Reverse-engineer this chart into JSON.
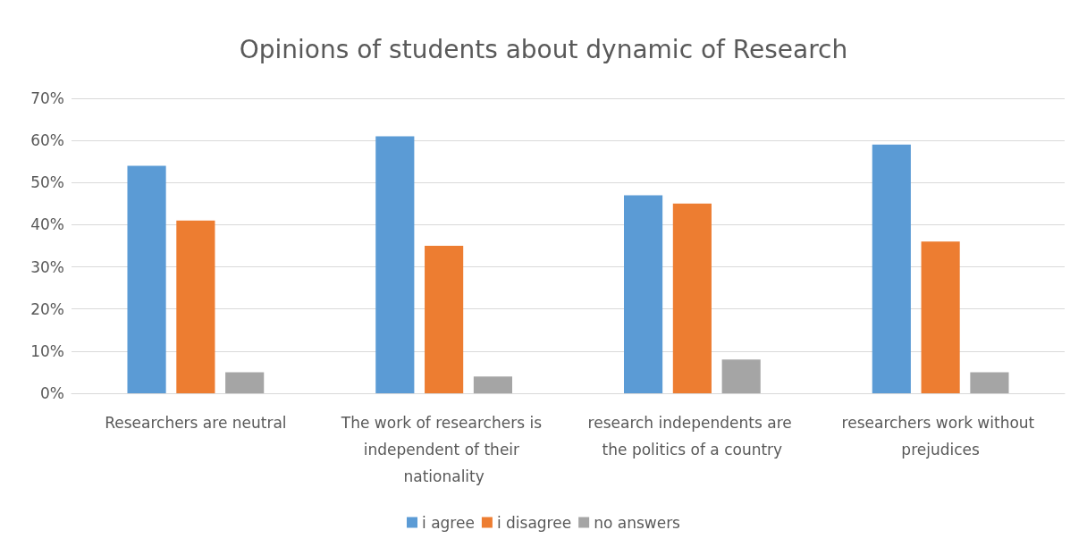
{
  "chart_data": {
    "type": "bar",
    "title": "Opinions of students about dynamic of Research",
    "categories": [
      "Researchers are neutral",
      "The work of researchers is independent of their nationality",
      "research independents are the politics of a country",
      "researchers work without prejudices"
    ],
    "series": [
      {
        "name": "i agree",
        "color": "#5b9bd5",
        "values": [
          54,
          61,
          47,
          59
        ]
      },
      {
        "name": "i disagree",
        "color": "#ed7d31",
        "values": [
          41,
          35,
          45,
          36
        ]
      },
      {
        "name": "no answers",
        "color": "#a5a5a5",
        "values": [
          5,
          4,
          8,
          5
        ]
      }
    ],
    "ylim": [
      0,
      70
    ],
    "yticks": [
      {
        "value": 0,
        "label": "0%"
      },
      {
        "value": 10,
        "label": "10%"
      },
      {
        "value": 20,
        "label": "20%"
      },
      {
        "value": 30,
        "label": "30%"
      },
      {
        "value": 40,
        "label": "40%"
      },
      {
        "value": 50,
        "label": "50%"
      },
      {
        "value": 60,
        "label": "60%"
      },
      {
        "value": 70,
        "label": "70%"
      }
    ],
    "grid": "y",
    "legend": "bottom"
  }
}
